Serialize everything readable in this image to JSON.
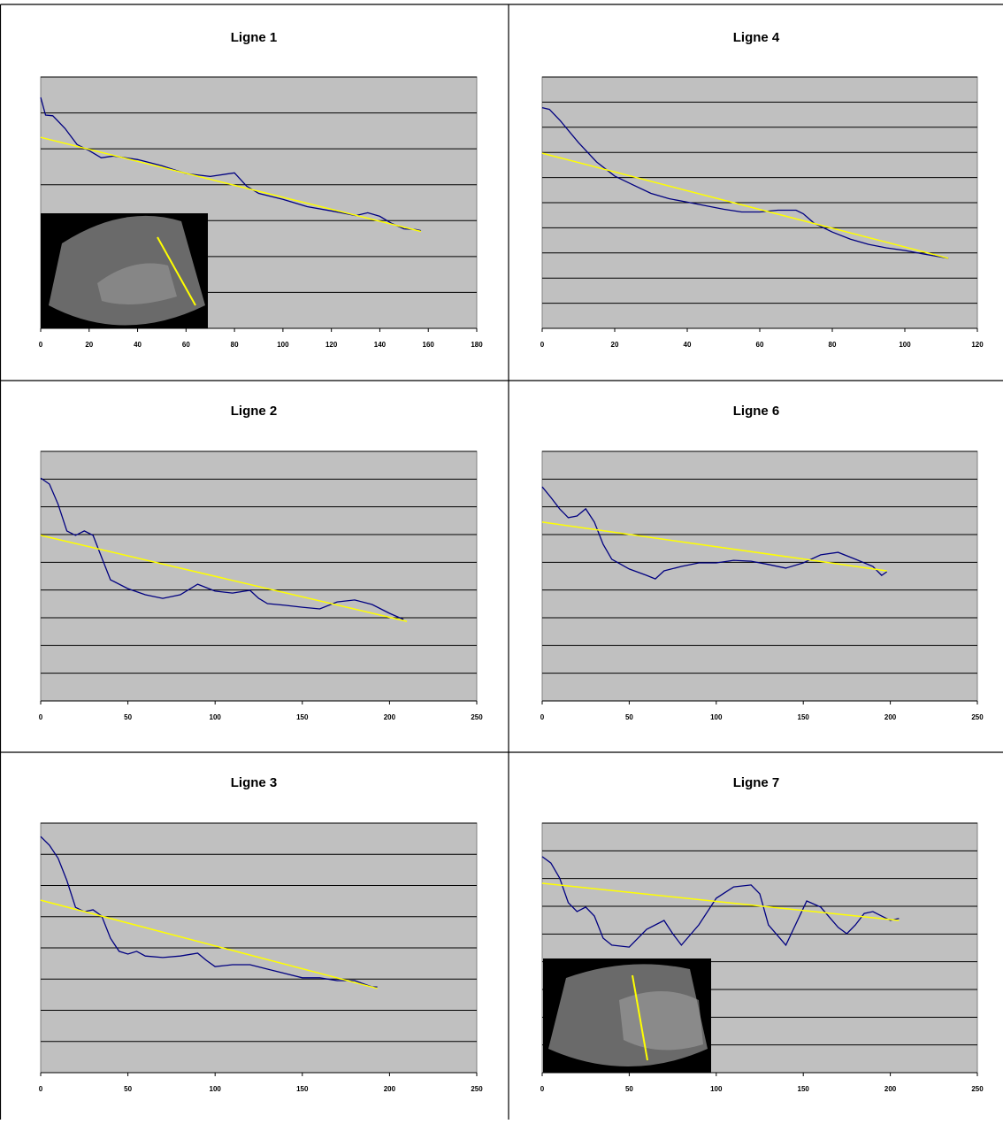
{
  "chart_data": [
    {
      "type": "line",
      "title": "Ligne 1",
      "xlim": [
        0,
        180
      ],
      "xticks": [
        0,
        20,
        40,
        60,
        80,
        100,
        120,
        140,
        160,
        180
      ],
      "ylim": [
        0,
        7
      ],
      "yticks": [
        0,
        1,
        2,
        3,
        4,
        5,
        6,
        7
      ],
      "grid": true,
      "series": [
        {
          "color": "#000080",
          "x": [
            0,
            2,
            5,
            10,
            15,
            20,
            25,
            30,
            40,
            50,
            60,
            70,
            80,
            85,
            90,
            100,
            110,
            120,
            130,
            135,
            140,
            145,
            150,
            155,
            157
          ],
          "values": [
            6.43,
            5.94,
            5.92,
            5.57,
            5.12,
            4.95,
            4.75,
            4.8,
            4.7,
            4.53,
            4.31,
            4.23,
            4.33,
            3.96,
            3.76,
            3.59,
            3.39,
            3.27,
            3.14,
            3.22,
            3.12,
            2.92,
            2.77,
            2.75,
            2.72
          ]
        },
        {
          "color": "#ffff00",
          "x": [
            0,
            157
          ],
          "values": [
            5.32,
            2.7
          ]
        }
      ]
    },
    {
      "type": "line",
      "title": "Ligne 4",
      "xlim": [
        0,
        120
      ],
      "xticks": [
        0,
        20,
        40,
        60,
        80,
        100,
        120
      ],
      "ylim": [
        0,
        10
      ],
      "yticks": [
        0,
        1,
        2,
        3,
        4,
        5,
        6,
        7,
        8,
        9,
        10
      ],
      "grid": true,
      "series": [
        {
          "color": "#000080",
          "x": [
            0,
            2,
            5,
            10,
            15,
            20,
            25,
            30,
            35,
            40,
            45,
            50,
            55,
            60,
            65,
            70,
            72,
            75,
            80,
            85,
            90,
            95,
            100,
            105,
            112
          ],
          "values": [
            8.78,
            8.71,
            8.26,
            7.39,
            6.62,
            6.06,
            5.71,
            5.37,
            5.16,
            5.02,
            4.88,
            4.74,
            4.63,
            4.63,
            4.7,
            4.7,
            4.56,
            4.18,
            3.83,
            3.55,
            3.34,
            3.2,
            3.1,
            2.96,
            2.79
          ]
        },
        {
          "color": "#ffff00",
          "x": [
            0,
            112
          ],
          "values": [
            6.97,
            2.79
          ]
        }
      ]
    },
    {
      "type": "line",
      "title": "Ligne 2",
      "xlim": [
        0,
        250
      ],
      "xticks": [
        0,
        50,
        100,
        150,
        200,
        250
      ],
      "ylim": [
        0,
        9
      ],
      "yticks": [
        0,
        1,
        2,
        3,
        4,
        5,
        6,
        7,
        8,
        9
      ],
      "grid": true,
      "series": [
        {
          "color": "#000080",
          "x": [
            0,
            5,
            10,
            15,
            20,
            25,
            30,
            35,
            40,
            50,
            60,
            70,
            80,
            90,
            100,
            110,
            120,
            125,
            130,
            140,
            150,
            160,
            170,
            180,
            190,
            200,
            208
          ],
          "values": [
            8.04,
            7.82,
            7.09,
            6.13,
            5.97,
            6.13,
            5.97,
            5.17,
            4.37,
            4.05,
            3.83,
            3.7,
            3.83,
            4.21,
            3.96,
            3.89,
            3.99,
            3.7,
            3.51,
            3.45,
            3.38,
            3.32,
            3.57,
            3.64,
            3.48,
            3.16,
            2.94
          ]
        },
        {
          "color": "#ffff00",
          "x": [
            0,
            210
          ],
          "values": [
            5.97,
            2.87
          ]
        }
      ]
    },
    {
      "type": "line",
      "title": "Ligne 6",
      "xlim": [
        0,
        250
      ],
      "xticks": [
        0,
        50,
        100,
        150,
        200,
        250
      ],
      "ylim": [
        0,
        9
      ],
      "yticks": [
        0,
        1,
        2,
        3,
        4,
        5,
        6,
        7,
        8,
        9
      ],
      "grid": true,
      "series": [
        {
          "color": "#000080",
          "x": [
            0,
            5,
            10,
            15,
            20,
            25,
            30,
            35,
            40,
            50,
            60,
            65,
            70,
            80,
            90,
            100,
            110,
            120,
            130,
            140,
            150,
            160,
            170,
            180,
            190,
            195,
            198
          ],
          "values": [
            7.72,
            7.34,
            6.93,
            6.61,
            6.67,
            6.93,
            6.45,
            5.65,
            5.11,
            4.76,
            4.53,
            4.4,
            4.69,
            4.85,
            4.98,
            4.98,
            5.07,
            5.04,
            4.92,
            4.79,
            4.98,
            5.27,
            5.36,
            5.11,
            4.85,
            4.53,
            4.66
          ]
        },
        {
          "color": "#ffff00",
          "x": [
            0,
            198
          ],
          "values": [
            6.45,
            4.69
          ]
        }
      ]
    },
    {
      "type": "line",
      "title": "Ligne 3",
      "xlim": [
        0,
        250
      ],
      "xticks": [
        0,
        50,
        100,
        150,
        200,
        250
      ],
      "ylim": [
        0,
        8
      ],
      "yticks": [
        0,
        1,
        2,
        3,
        4,
        5,
        6,
        7,
        8
      ],
      "grid": true,
      "series": [
        {
          "color": "#000080",
          "x": [
            0,
            5,
            10,
            15,
            20,
            25,
            30,
            35,
            40,
            45,
            50,
            55,
            60,
            70,
            80,
            90,
            95,
            100,
            110,
            120,
            130,
            140,
            150,
            160,
            170,
            180,
            190,
            193
          ],
          "values": [
            7.57,
            7.29,
            6.87,
            6.16,
            5.3,
            5.16,
            5.22,
            5.02,
            4.31,
            3.89,
            3.8,
            3.89,
            3.74,
            3.69,
            3.74,
            3.83,
            3.6,
            3.4,
            3.46,
            3.46,
            3.32,
            3.18,
            3.04,
            3.04,
            2.95,
            2.95,
            2.75,
            2.75
          ]
        },
        {
          "color": "#ffff00",
          "x": [
            0,
            193
          ],
          "values": [
            5.53,
            2.7
          ]
        }
      ]
    },
    {
      "type": "line",
      "title": "Ligne 7",
      "xlim": [
        0,
        250
      ],
      "xticks": [
        0,
        50,
        100,
        150,
        200,
        250
      ],
      "ylim": [
        0,
        9
      ],
      "yticks": [
        0,
        1,
        2,
        3,
        4,
        5,
        6,
        7,
        8,
        9
      ],
      "grid": true,
      "series": [
        {
          "color": "#000080",
          "x": [
            0,
            5,
            10,
            15,
            20,
            25,
            30,
            35,
            40,
            50,
            60,
            70,
            75,
            80,
            90,
            100,
            110,
            120,
            125,
            130,
            140,
            152,
            160,
            170,
            175,
            180,
            185,
            190,
            200,
            205
          ],
          "values": [
            7.79,
            7.56,
            7.02,
            6.13,
            5.81,
            5.97,
            5.65,
            4.85,
            4.6,
            4.53,
            5.17,
            5.49,
            5.01,
            4.6,
            5.33,
            6.29,
            6.7,
            6.77,
            6.45,
            5.33,
            4.6,
            6.19,
            5.97,
            5.24,
            5.01,
            5.33,
            5.74,
            5.81,
            5.49,
            5.56
          ]
        },
        {
          "color": "#ffff00",
          "x": [
            0,
            205
          ],
          "values": [
            6.83,
            5.49
          ]
        }
      ]
    }
  ]
}
